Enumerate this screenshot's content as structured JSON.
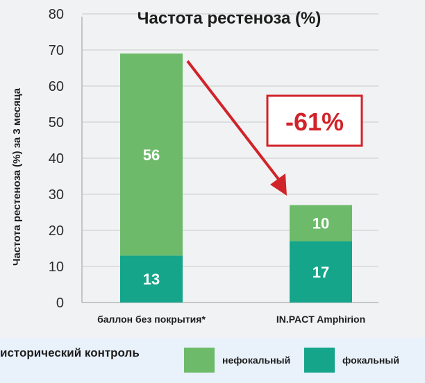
{
  "chart_data": {
    "type": "bar",
    "stacked": true,
    "title": "Частота рестеноза (%)",
    "ylabel": "Частота рестеноза (%) за 3 месяца",
    "xlabel": "",
    "ylim": [
      0,
      80
    ],
    "yticks": [
      0,
      10,
      20,
      30,
      40,
      50,
      60,
      70,
      80
    ],
    "grid": true,
    "categories": [
      "баллон без покрытия*",
      "IN.PACT Amphirion"
    ],
    "series": [
      {
        "name": "фокальный",
        "values": [
          13,
          17
        ],
        "color": "#14a58a"
      },
      {
        "name": "нефокальный",
        "values": [
          56,
          10
        ],
        "color": "#6dbb6a"
      }
    ],
    "data_labels": [
      {
        "series": 0,
        "category": 0,
        "text": "13"
      },
      {
        "series": 1,
        "category": 0,
        "text": "56"
      },
      {
        "series": 0,
        "category": 1,
        "text": "17"
      },
      {
        "series": 1,
        "category": 1,
        "text": "10"
      }
    ],
    "annotation": {
      "text": "-61%",
      "color": "#d1232a"
    }
  },
  "legend": {
    "title": "исторический контроль",
    "items": [
      {
        "label": "нефокальный",
        "color": "#6dbb6a"
      },
      {
        "label": "фокальный",
        "color": "#14a58a"
      }
    ]
  }
}
